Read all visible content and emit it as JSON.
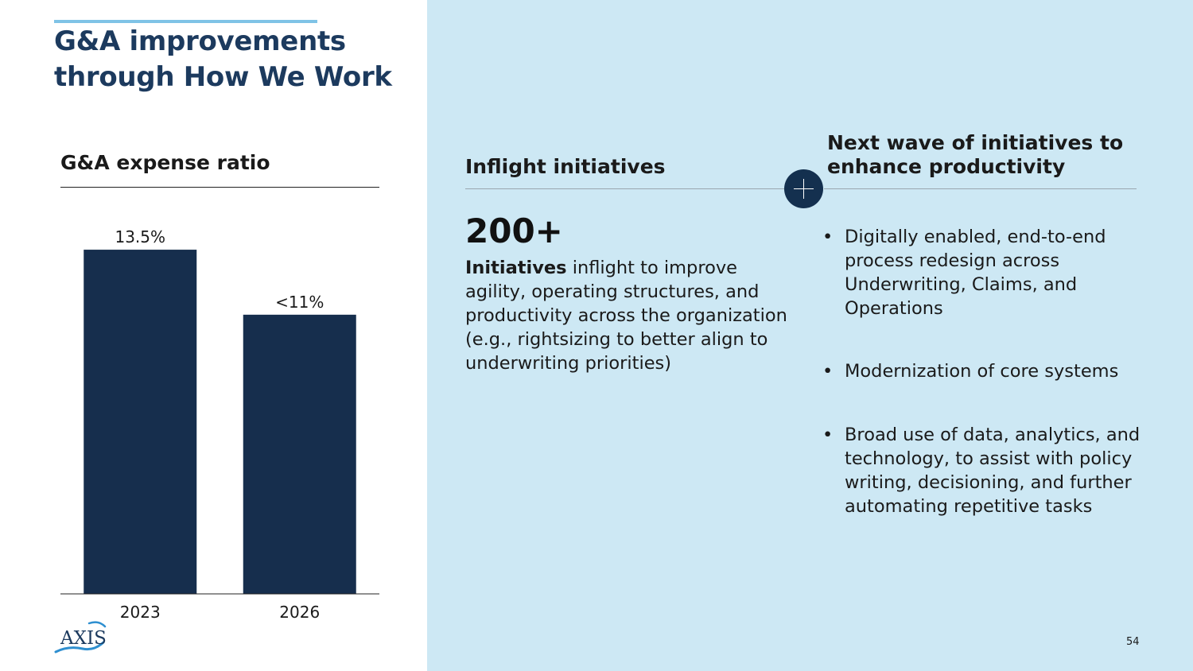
{
  "title": "G&A improvements through How We Work",
  "chart_heading": "G&A expense ratio",
  "chart_data": {
    "type": "bar",
    "categories": [
      "2023",
      "2026"
    ],
    "values": [
      13.5,
      10.95
    ],
    "data_labels": [
      "13.5%",
      "<11%"
    ],
    "title": "G&A expense ratio",
    "xlabel": "",
    "ylabel": "",
    "ylim": [
      0,
      14.5
    ],
    "grid": false,
    "bar_color": "#162e4d"
  },
  "inflight": {
    "heading": "Inflight initiatives",
    "big_number": "200+",
    "lead": "Initiatives",
    "body": " inflight to improve agility, operating structures, and productivity across the organization (e.g., rightsizing to better align to underwriting priorities)"
  },
  "next_wave": {
    "heading": "Next wave of initiatives to enhance productivity",
    "bullets": [
      "Digitally enabled, end-to-end process redesign across Underwriting, Claims, and Operations",
      "Modernization of core systems",
      "Broad use of data, analytics, and technology, to assist with policy writing, decisioning, and further automating repetitive tasks"
    ]
  },
  "plus_icon": "plus-icon",
  "logo_text": "AXIS",
  "page_number": "54",
  "colors": {
    "navy": "#162e4d",
    "title": "#1c3a5e",
    "accent_bar": "#7fc3e6",
    "panel": "#cde8f4"
  }
}
